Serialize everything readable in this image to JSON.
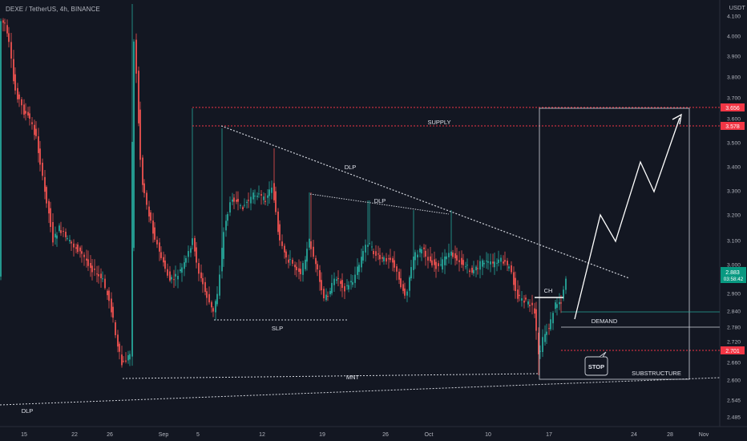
{
  "header": {
    "symbol": "DEXE / TetherUS, 4h, BINANCE",
    "currency": "USDT"
  },
  "chart_data": {
    "type": "candlestick",
    "y_axis": {
      "ticks": [
        "4.100",
        "4.000",
        "3.900",
        "3.800",
        "3.700",
        "3.600",
        "3.500",
        "3.400",
        "3.300",
        "3.200",
        "3.100",
        "3.000",
        "2.900",
        "2.840",
        "2.780",
        "2.720",
        "2.660",
        "2.600",
        "2.545",
        "2.485"
      ]
    },
    "x_axis": {
      "ticks": [
        "15",
        "22",
        "26",
        "Sep",
        "5",
        "12",
        "19",
        "26",
        "Oct",
        "10",
        "17",
        "24",
        "28",
        "Nov"
      ]
    },
    "price_tags": [
      {
        "value": "3.656",
        "color": "#f23645"
      },
      {
        "value": "3.578",
        "color": "#f23645"
      },
      {
        "value": "2.883",
        "sub": "03:58:42",
        "color": "#089981"
      },
      {
        "value": "2.701",
        "color": "#f23645"
      }
    ],
    "annotations": [
      "SUPPLY",
      "DLP",
      "DLP",
      "SLP",
      "CH",
      "DEMAND",
      "STOP",
      "MNT",
      "SUBSTRUCTURE",
      "DLP"
    ],
    "colors": {
      "up": "#26a69a",
      "down": "#ef5350",
      "background": "#131722",
      "supply": "#f23645"
    }
  }
}
